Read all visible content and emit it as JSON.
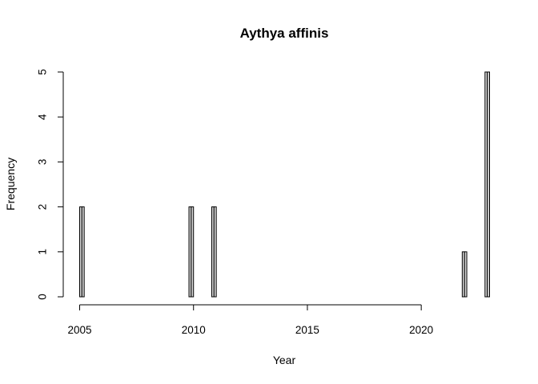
{
  "chart_data": {
    "type": "bar",
    "title": "Aythya affinis",
    "xlabel": "Year",
    "ylabel": "Frequency",
    "xlim": [
      2005,
      2023
    ],
    "ylim": [
      0,
      5
    ],
    "x_ticks": [
      2005,
      2010,
      2015,
      2020
    ],
    "y_ticks": [
      0,
      1,
      2,
      3,
      4,
      5
    ],
    "bin_width": 0.1,
    "grid": false,
    "bar_color": "#d3d3d3",
    "bins": [
      {
        "start": 2005.0,
        "end": 2005.2,
        "count": 2
      },
      {
        "start": 2009.8,
        "end": 2010.0,
        "count": 2
      },
      {
        "start": 2010.8,
        "end": 2011.0,
        "count": 2
      },
      {
        "start": 2021.8,
        "end": 2022.0,
        "count": 1
      },
      {
        "start": 2022.8,
        "end": 2023.0,
        "count": 5
      }
    ]
  }
}
